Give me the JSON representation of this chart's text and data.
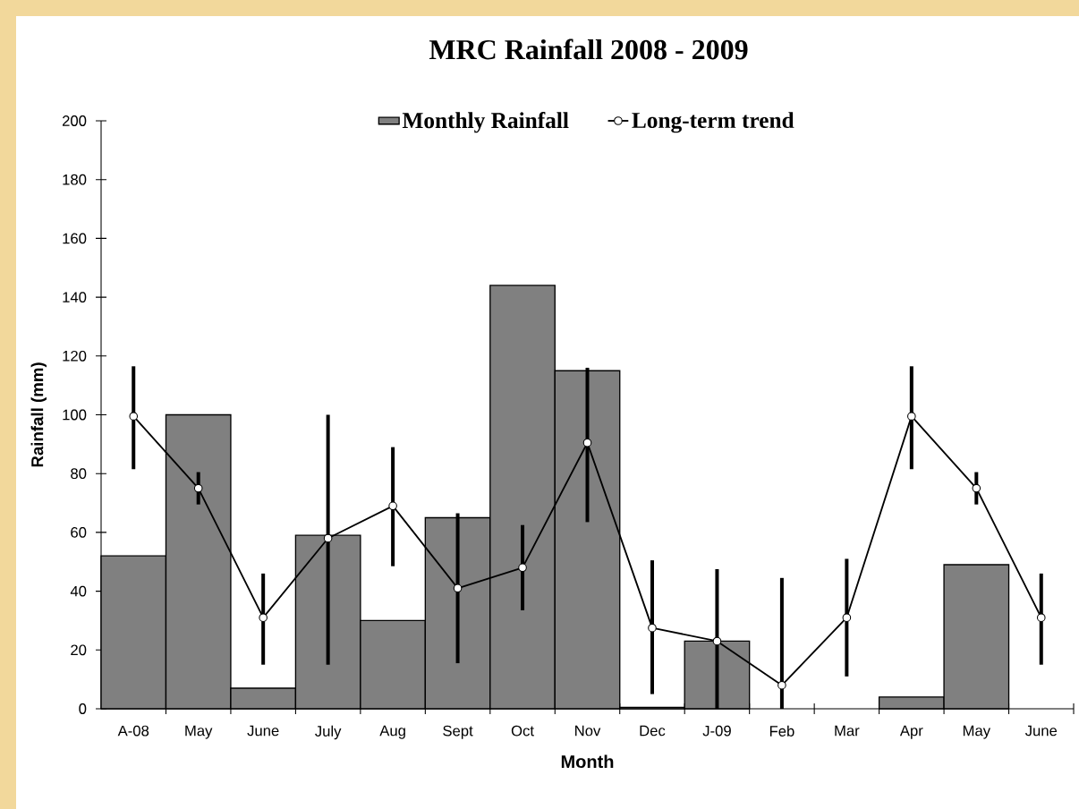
{
  "chart_data": {
    "type": "bar",
    "title": "MRC Rainfall 2008 - 2009",
    "xlabel": "Month",
    "ylabel": "Rainfall (mm)",
    "categories": [
      "A-08",
      "May",
      "June",
      "July",
      "Aug",
      "Sept",
      "Oct",
      "Nov",
      "Dec",
      "J-09",
      "Feb",
      "Mar",
      "Apr",
      "May",
      "June"
    ],
    "series": [
      {
        "name": "Monthly Rainfall",
        "color": "#808080",
        "values": [
          52,
          100,
          7,
          59,
          30,
          65,
          144,
          115,
          0.5,
          23,
          null,
          null,
          4,
          49,
          null
        ]
      },
      {
        "name": "Long-term trend",
        "type": "line",
        "color": "#000000",
        "marker": "circle",
        "values": [
          99.5,
          75,
          31,
          58,
          69,
          41,
          48,
          90.5,
          27.5,
          23,
          8,
          31,
          99.5,
          75,
          31
        ],
        "errors": [
          [
            81.5,
            116.5
          ],
          [
            69.5,
            80.5
          ],
          [
            15,
            46
          ],
          [
            15,
            100
          ],
          [
            48.5,
            89
          ],
          [
            15.5,
            66.5
          ],
          [
            33.5,
            62.5
          ],
          [
            63.5,
            116
          ],
          [
            5,
            50.5
          ],
          [
            0,
            47.5
          ],
          [
            0,
            44.5
          ],
          [
            11,
            51
          ],
          [
            81.5,
            116.5
          ],
          [
            69.5,
            80.5
          ],
          [
            15,
            46
          ]
        ]
      }
    ],
    "ylim": [
      0,
      200
    ],
    "yticks": [
      0,
      20,
      40,
      60,
      80,
      100,
      120,
      140,
      160,
      180,
      200
    ],
    "legend": "top"
  }
}
